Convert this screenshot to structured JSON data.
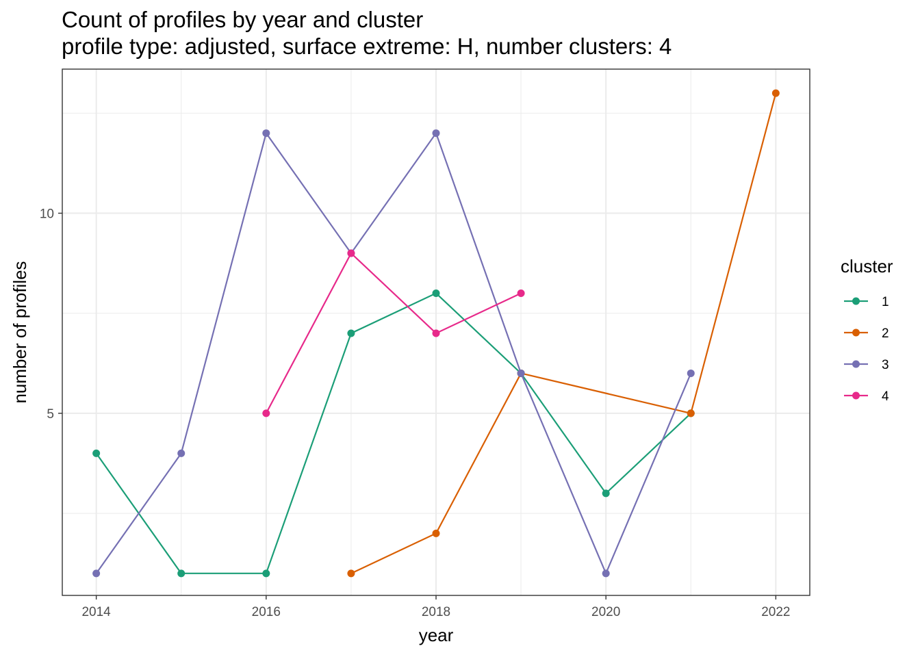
{
  "title": "Count of profiles by year and cluster",
  "subtitle": "profile type: adjusted, surface extreme: H, number clusters: 4",
  "chart_data": {
    "type": "line",
    "title": "Count of profiles by year and cluster",
    "subtitle": "profile type: adjusted, surface extreme: H, number clusters: 4",
    "xlabel": "year",
    "ylabel": "number of profiles",
    "xlim": [
      2013.6,
      2022.4
    ],
    "ylim": [
      0.45,
      13.6
    ],
    "x_ticks": [
      2014,
      2016,
      2018,
      2020,
      2022
    ],
    "x_tick_labels": [
      "2014",
      "2016",
      "2018",
      "2020",
      "2022"
    ],
    "y_ticks": [
      5,
      10
    ],
    "y_tick_labels": [
      "5",
      "10"
    ],
    "grid": true,
    "legend_title": "cluster",
    "legend_position": "right",
    "series": [
      {
        "name": "1",
        "color": "#1b9e77",
        "points": [
          [
            2014,
            4
          ],
          [
            2015,
            1
          ],
          [
            2016,
            1
          ],
          [
            2017,
            7
          ],
          [
            2018,
            8
          ],
          [
            2019,
            6
          ],
          [
            2020,
            3
          ],
          [
            2021,
            5
          ]
        ]
      },
      {
        "name": "2",
        "color": "#d95f02",
        "points": [
          [
            2017,
            1
          ],
          [
            2018,
            2
          ],
          [
            2019,
            6
          ],
          [
            2021,
            5
          ],
          [
            2022,
            13
          ]
        ]
      },
      {
        "name": "3",
        "color": "#7570b3",
        "points": [
          [
            2014,
            1
          ],
          [
            2015,
            4
          ],
          [
            2016,
            12
          ],
          [
            2017,
            9
          ],
          [
            2018,
            12
          ],
          [
            2019,
            6
          ],
          [
            2020,
            1
          ],
          [
            2021,
            6
          ]
        ]
      },
      {
        "name": "4",
        "color": "#e7298a",
        "points": [
          [
            2016,
            5
          ],
          [
            2017,
            9
          ],
          [
            2018,
            7
          ],
          [
            2019,
            8
          ]
        ]
      }
    ]
  }
}
